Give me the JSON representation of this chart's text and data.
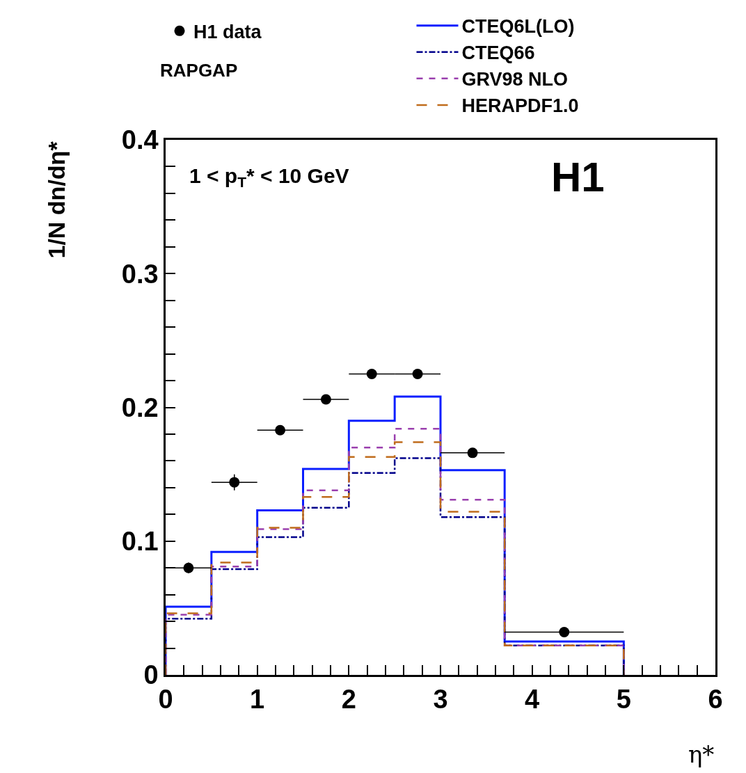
{
  "chart_data": {
    "type": "histogram",
    "xlabel": "η*",
    "ylabel": "1/N dn/dη*",
    "bins": [
      0,
      0.5,
      1,
      1.5,
      2,
      2.5,
      3,
      3.7,
      5
    ],
    "xlim": [
      0,
      6
    ],
    "ylim": [
      0,
      0.4
    ],
    "xticks": [
      0,
      {
        "value": 0.2,
        "label": null
      },
      {
        "value": 0.4,
        "label": null
      },
      {
        "value": 0.6,
        "label": null
      },
      {
        "value": 0.8,
        "label": null
      },
      1,
      {
        "value": 1.2,
        "label": null
      },
      {
        "value": 1.4,
        "label": null
      },
      {
        "value": 1.6,
        "label": null
      },
      {
        "value": 1.8,
        "label": null
      },
      2,
      {
        "value": 2.2,
        "label": null
      },
      {
        "value": 2.4,
        "label": null
      },
      {
        "value": 2.6,
        "label": null
      },
      {
        "value": 2.8,
        "label": null
      },
      3,
      {
        "value": 3.2,
        "label": null
      },
      {
        "value": 3.4,
        "label": null
      },
      {
        "value": 3.6,
        "label": null
      },
      {
        "value": 3.8,
        "label": null
      },
      4,
      {
        "value": 4.2,
        "label": null
      },
      {
        "value": 4.4,
        "label": null
      },
      {
        "value": 4.6,
        "label": null
      },
      {
        "value": 4.8,
        "label": null
      },
      5,
      {
        "value": 5.2,
        "label": null
      },
      {
        "value": 5.4,
        "label": null
      },
      {
        "value": 5.6,
        "label": null
      },
      {
        "value": 5.8,
        "label": null
      },
      6
    ],
    "yticks": [
      0,
      {
        "value": 0.02,
        "label": null
      },
      {
        "value": 0.04,
        "label": null
      },
      {
        "value": 0.06,
        "label": null
      },
      {
        "value": 0.08,
        "label": null
      },
      0.1,
      {
        "value": 0.12,
        "label": null
      },
      {
        "value": 0.14,
        "label": null
      },
      {
        "value": 0.16,
        "label": null
      },
      {
        "value": 0.18,
        "label": null
      },
      0.2,
      {
        "value": 0.22,
        "label": null
      },
      {
        "value": 0.24,
        "label": null
      },
      {
        "value": 0.26,
        "label": null
      },
      {
        "value": 0.28,
        "label": null
      },
      0.3,
      {
        "value": 0.32,
        "label": null
      },
      {
        "value": 0.34,
        "label": null
      },
      {
        "value": 0.36,
        "label": null
      },
      {
        "value": 0.38,
        "label": null
      },
      0.4
    ],
    "legend": "top",
    "series": [
      {
        "name": "H1 data",
        "type": "scatter",
        "marker": "circle",
        "color": "#000000",
        "x": [
          0.25,
          0.75,
          1.25,
          1.75,
          2.25,
          2.75,
          3.35,
          4.35
        ],
        "values": [
          0.08,
          0.144,
          0.183,
          0.206,
          0.225,
          0.225,
          0.166,
          0.032
        ],
        "errors": [
          0.004,
          0.006,
          0.003,
          0.002,
          0.002,
          0.002,
          0.002,
          0.002
        ],
        "xerrors": [
          0.25,
          0.25,
          0.25,
          0.25,
          0.25,
          0.25,
          0.35,
          0.65
        ]
      },
      {
        "name": "CTEQ6L(LO)",
        "color": "#0a1eff",
        "line_style": "solid",
        "values": [
          0.051,
          0.092,
          0.123,
          0.154,
          0.19,
          0.208,
          0.153,
          0.025
        ]
      },
      {
        "name": "CTEQ66",
        "color": "#00008b",
        "line_style": "dashdot",
        "values": [
          0.042,
          0.079,
          0.103,
          0.125,
          0.151,
          0.162,
          0.118,
          0.022
        ]
      },
      {
        "name": "GRV98 NLO",
        "color": "#9a3fae",
        "line_style": "dashed",
        "values": [
          0.045,
          0.081,
          0.109,
          0.138,
          0.17,
          0.184,
          0.131,
          0.022
        ]
      },
      {
        "name": "HERAPDF1.0",
        "color": "#c06c1c",
        "line_style": "longdash",
        "values": [
          0.046,
          0.084,
          0.11,
          0.133,
          0.163,
          0.174,
          0.122,
          0.022
        ]
      }
    ],
    "annotations": [
      "RAPGAP",
      "1 < p$_{T}$* < 10 GeV",
      "H1"
    ]
  }
}
